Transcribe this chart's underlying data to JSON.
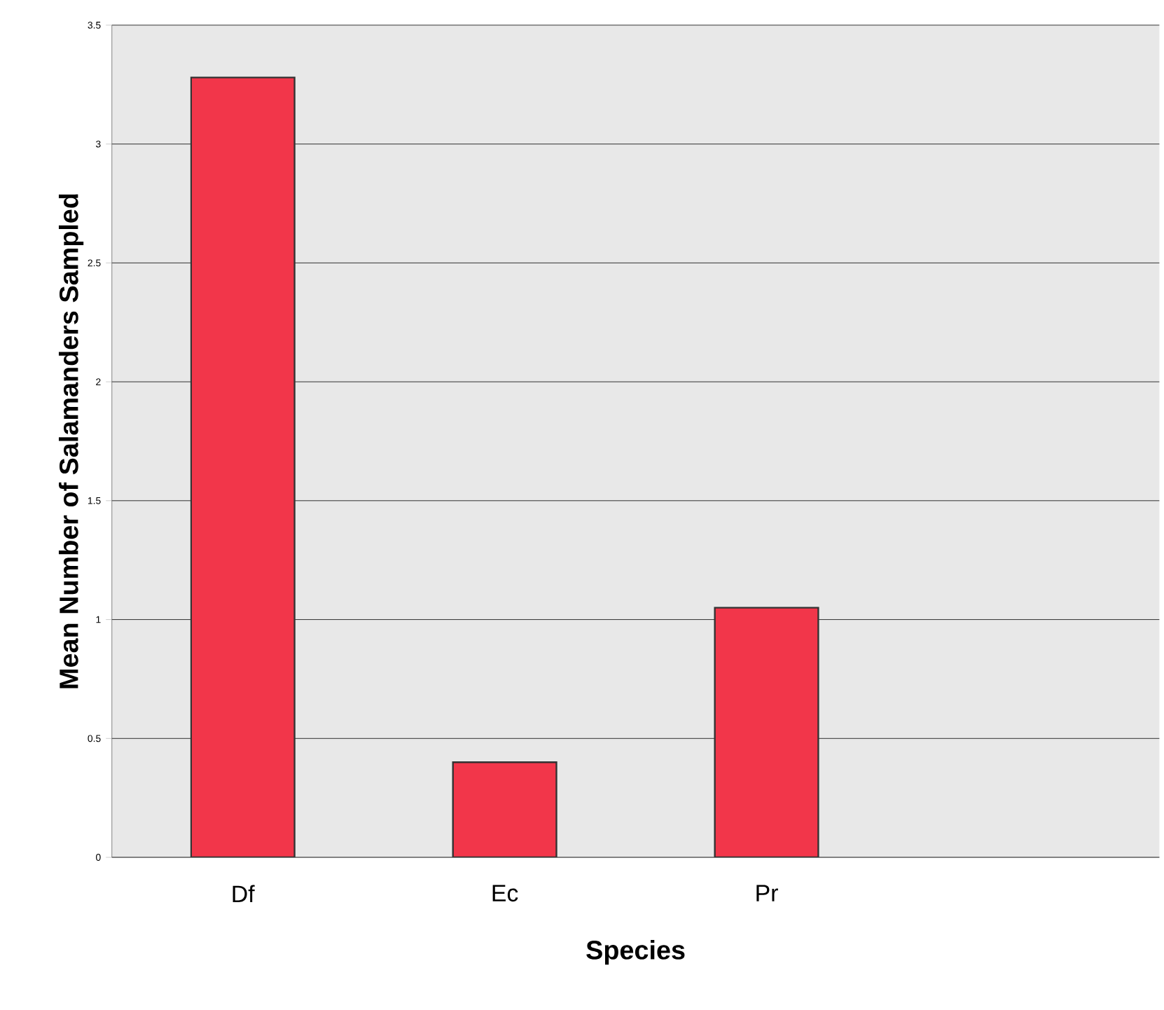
{
  "chart_data": {
    "type": "bar",
    "xlabel": "Species",
    "ylabel": "Mean Number of Salamanders Sampled",
    "categories": [
      "Df",
      "Ec",
      "Pr",
      null
    ],
    "values": [
      3.28,
      0.4,
      1.05,
      null
    ],
    "color": "#f2364a",
    "ylim": [
      0,
      3.5
    ],
    "yticks": [
      0,
      0.5,
      1,
      1.5,
      2,
      2.5,
      3,
      3.5
    ],
    "grid": "y"
  }
}
